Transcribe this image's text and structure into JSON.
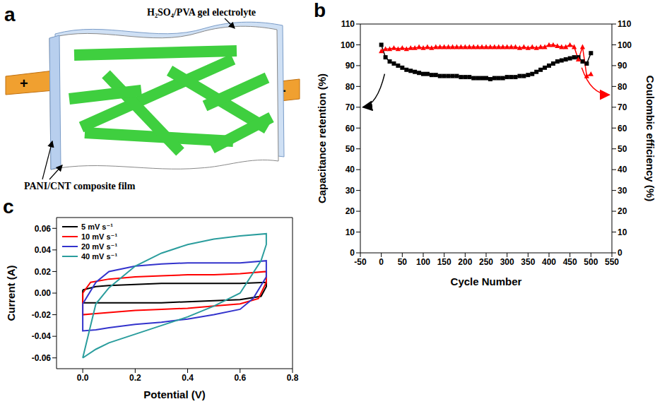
{
  "diagram": {
    "panel": "a",
    "labels": {
      "electrolyte": "H₂SO₄/PVA gel electrolyte",
      "film": "PANI/CNT composite film",
      "positive": "+",
      "negative": "-"
    }
  },
  "chart_data": [
    {
      "panel": "b",
      "type": "line",
      "x_label": "Cycle Number",
      "y_label": "Capacitance retention (%)",
      "y2_label": "Coulombic efficiency (%)",
      "xlim": [
        -50,
        550
      ],
      "xticks": [
        -50,
        0,
        50,
        100,
        150,
        200,
        250,
        300,
        350,
        400,
        450,
        500,
        550
      ],
      "ylim": [
        0,
        110
      ],
      "yticks": [
        0,
        10,
        20,
        30,
        40,
        50,
        60,
        70,
        80,
        90,
        100,
        110
      ],
      "y2lim": [
        0,
        110
      ],
      "y2ticks": [
        0,
        10,
        20,
        30,
        40,
        50,
        60,
        70,
        80,
        90,
        100,
        110
      ],
      "x": [
        0,
        10,
        20,
        30,
        40,
        50,
        60,
        70,
        80,
        90,
        100,
        110,
        120,
        130,
        140,
        150,
        160,
        170,
        180,
        190,
        200,
        210,
        220,
        230,
        240,
        250,
        260,
        270,
        280,
        290,
        300,
        310,
        320,
        330,
        340,
        350,
        360,
        370,
        380,
        390,
        400,
        410,
        420,
        430,
        440,
        450,
        460,
        470,
        480,
        490,
        500
      ],
      "series": [
        {
          "color": "#000000",
          "marker": "square",
          "values": [
            100,
            94,
            92,
            91,
            90,
            89,
            88,
            87.5,
            87,
            86.5,
            86,
            86,
            85.5,
            85.5,
            85,
            85,
            85,
            85,
            85,
            84.5,
            84.5,
            84.5,
            84,
            84,
            84,
            84,
            83.5,
            84,
            84,
            84,
            84.5,
            84.5,
            84.5,
            85,
            85,
            85.5,
            86,
            87,
            88,
            89,
            90,
            91,
            92,
            92.5,
            93,
            93.5,
            94,
            94,
            92,
            91,
            96
          ]
        },
        {
          "color": "#ff0000",
          "marker": "triangle",
          "axis": "y2",
          "values": [
            97,
            98,
            98,
            98.5,
            98,
            98.5,
            98,
            98.5,
            98.5,
            99,
            98.5,
            99,
            98.5,
            99,
            99,
            99,
            99,
            99,
            99,
            99,
            99,
            99,
            99,
            99,
            99,
            99,
            99,
            99,
            99,
            99,
            99,
            99,
            99,
            98.5,
            99,
            98.5,
            99,
            98.5,
            99,
            99,
            100,
            100,
            99.5,
            99,
            99,
            100,
            99,
            93,
            99,
            85,
            86
          ]
        }
      ]
    },
    {
      "panel": "c",
      "type": "line",
      "x_label": "Potential (V)",
      "y_label": "Current (A)",
      "xlim": [
        -0.1,
        0.8
      ],
      "xticks": [
        {
          "value": 0,
          "label": "0.0"
        },
        0.2,
        0.4,
        0.6,
        0.8
      ],
      "ylim": [
        -0.07,
        0.07
      ],
      "yticks": [
        -0.06,
        -0.04,
        -0.02,
        {
          "value": 0,
          "label": "0.00"
        },
        0.02,
        0.04,
        0.06
      ],
      "legend": "top-left",
      "series": [
        {
          "name": "5 mV s⁻¹",
          "color": "#000000",
          "x": [
            0,
            0.05,
            0.1,
            0.2,
            0.3,
            0.4,
            0.5,
            0.6,
            0.7,
            0.7,
            0.68,
            0.6,
            0.5,
            0.4,
            0.3,
            0.2,
            0.1,
            0.05,
            0,
            0
          ],
          "values": [
            0.003,
            0.006,
            0.007,
            0.008,
            0.009,
            0.009,
            0.009,
            0.009,
            0.01,
            0.006,
            -0.003,
            -0.006,
            -0.007,
            -0.008,
            -0.009,
            -0.009,
            -0.009,
            -0.009,
            -0.009,
            0.003
          ]
        },
        {
          "name": "10 mV s⁻¹",
          "color": "#ff0000",
          "x": [
            0,
            0.03,
            0.1,
            0.2,
            0.3,
            0.4,
            0.5,
            0.6,
            0.7,
            0.7,
            0.67,
            0.6,
            0.5,
            0.4,
            0.3,
            0.2,
            0.1,
            0.05,
            0,
            0
          ],
          "values": [
            0,
            0.01,
            0.013,
            0.015,
            0.016,
            0.017,
            0.017,
            0.018,
            0.02,
            0.01,
            -0.005,
            -0.01,
            -0.012,
            -0.014,
            -0.015,
            -0.016,
            -0.018,
            -0.019,
            -0.02,
            0
          ]
        },
        {
          "name": "20 mV s⁻¹",
          "color": "#3333cc",
          "x": [
            0,
            0.05,
            0.1,
            0.2,
            0.3,
            0.4,
            0.5,
            0.6,
            0.7,
            0.7,
            0.65,
            0.6,
            0.5,
            0.4,
            0.3,
            0.2,
            0.1,
            0.05,
            0,
            0
          ],
          "values": [
            -0.01,
            0.01,
            0.02,
            0.025,
            0.027,
            0.028,
            0.028,
            0.028,
            0.03,
            0.015,
            -0.005,
            -0.015,
            -0.02,
            -0.024,
            -0.027,
            -0.029,
            -0.032,
            -0.034,
            -0.035,
            -0.01
          ]
        },
        {
          "name": "40 mV s⁻¹",
          "color": "#2a9d9d",
          "x": [
            0,
            0.05,
            0.1,
            0.2,
            0.3,
            0.4,
            0.5,
            0.6,
            0.7,
            0.7,
            0.68,
            0.6,
            0.5,
            0.4,
            0.3,
            0.2,
            0.1,
            0.05,
            0
          ],
          "values": [
            -0.06,
            -0.01,
            0.005,
            0.025,
            0.037,
            0.045,
            0.05,
            0.053,
            0.055,
            0.045,
            0.03,
            0,
            -0.012,
            -0.022,
            -0.03,
            -0.038,
            -0.046,
            -0.052,
            -0.06
          ]
        }
      ]
    }
  ]
}
